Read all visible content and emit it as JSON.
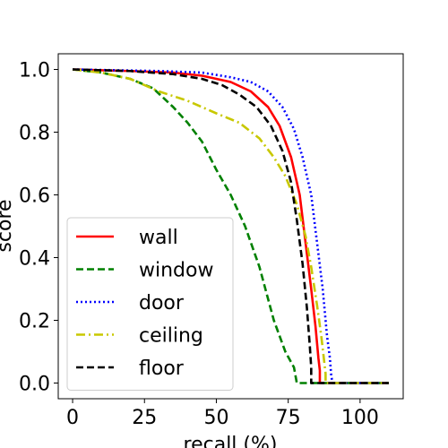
{
  "chart_data": {
    "type": "line",
    "xlabel": "recall (%)",
    "ylabel": "score",
    "xlim": [
      -5,
      115
    ],
    "ylim": [
      -0.05,
      1.05
    ],
    "xticks": [
      0,
      25,
      50,
      75,
      100
    ],
    "xtick_labels": [
      "0",
      "25",
      "50",
      "75",
      "100"
    ],
    "yticks": [
      0.0,
      0.2,
      0.4,
      0.6,
      0.8,
      1.0
    ],
    "ytick_labels": [
      "0.0",
      "0.2",
      "0.4",
      "0.6",
      "0.8",
      "1.0"
    ],
    "grid": false,
    "legend_position": "lower-left",
    "series": [
      {
        "name": "wall",
        "color": "#ff0000",
        "dash": "solid",
        "points": [
          [
            0,
            1.0
          ],
          [
            20,
            0.995
          ],
          [
            35,
            0.99
          ],
          [
            45,
            0.98
          ],
          [
            55,
            0.96
          ],
          [
            62,
            0.93
          ],
          [
            68,
            0.88
          ],
          [
            72,
            0.82
          ],
          [
            76,
            0.72
          ],
          [
            79,
            0.6
          ],
          [
            81,
            0.45
          ],
          [
            83,
            0.3
          ],
          [
            84.5,
            0.18
          ],
          [
            85.5,
            0.08
          ],
          [
            86,
            0.04
          ],
          [
            86,
            0.0
          ],
          [
            110,
            0.0
          ]
        ]
      },
      {
        "name": "window",
        "color": "#008000",
        "dash": "dashed",
        "points": [
          [
            0,
            1.0
          ],
          [
            10,
            0.99
          ],
          [
            20,
            0.97
          ],
          [
            28,
            0.94
          ],
          [
            35,
            0.88
          ],
          [
            40,
            0.83
          ],
          [
            45,
            0.77
          ],
          [
            50,
            0.68
          ],
          [
            55,
            0.6
          ],
          [
            60,
            0.5
          ],
          [
            65,
            0.37
          ],
          [
            70,
            0.2
          ],
          [
            74,
            0.1
          ],
          [
            77,
            0.05
          ],
          [
            78,
            0.0
          ],
          [
            110,
            0.0
          ]
        ]
      },
      {
        "name": "door",
        "color": "#0000ff",
        "dash": "dotted",
        "points": [
          [
            0,
            1.0
          ],
          [
            30,
            0.995
          ],
          [
            45,
            0.99
          ],
          [
            55,
            0.975
          ],
          [
            62,
            0.96
          ],
          [
            68,
            0.93
          ],
          [
            73,
            0.88
          ],
          [
            77,
            0.81
          ],
          [
            80,
            0.72
          ],
          [
            83,
            0.6
          ],
          [
            85,
            0.45
          ],
          [
            87,
            0.3
          ],
          [
            88.5,
            0.15
          ],
          [
            89.5,
            0.08
          ],
          [
            90,
            0.02
          ],
          [
            90.5,
            0.0
          ],
          [
            110,
            0.0
          ]
        ]
      },
      {
        "name": "ceiling",
        "color": "#c8c800",
        "dash": "dashdot",
        "points": [
          [
            0,
            1.0
          ],
          [
            10,
            0.99
          ],
          [
            20,
            0.97
          ],
          [
            30,
            0.93
          ],
          [
            40,
            0.9
          ],
          [
            50,
            0.86
          ],
          [
            58,
            0.83
          ],
          [
            65,
            0.78
          ],
          [
            70,
            0.72
          ],
          [
            74,
            0.66
          ],
          [
            78,
            0.57
          ],
          [
            81,
            0.47
          ],
          [
            83,
            0.37
          ],
          [
            85,
            0.25
          ],
          [
            86.5,
            0.15
          ],
          [
            87.5,
            0.07
          ],
          [
            88,
            0.03
          ],
          [
            88,
            0.0
          ],
          [
            110,
            0.0
          ]
        ]
      },
      {
        "name": "floor",
        "color": "#000000",
        "dash": "dashed",
        "points": [
          [
            0,
            1.0
          ],
          [
            20,
            0.995
          ],
          [
            35,
            0.985
          ],
          [
            45,
            0.97
          ],
          [
            52,
            0.95
          ],
          [
            58,
            0.92
          ],
          [
            64,
            0.88
          ],
          [
            69,
            0.82
          ],
          [
            73,
            0.74
          ],
          [
            76,
            0.64
          ],
          [
            78,
            0.52
          ],
          [
            80,
            0.38
          ],
          [
            81.5,
            0.24
          ],
          [
            82.5,
            0.12
          ],
          [
            83,
            0.05
          ],
          [
            83,
            0.0
          ],
          [
            110,
            0.0
          ]
        ]
      }
    ]
  }
}
